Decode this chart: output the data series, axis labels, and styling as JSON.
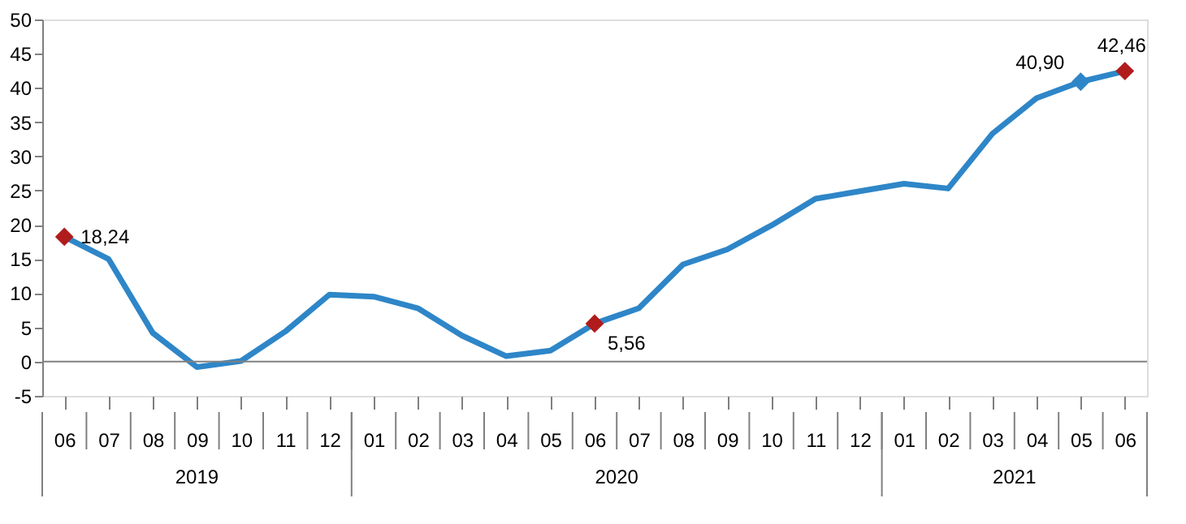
{
  "chart_data": {
    "type": "line",
    "categories": [
      "06",
      "07",
      "08",
      "09",
      "10",
      "11",
      "12",
      "01",
      "02",
      "03",
      "04",
      "05",
      "06",
      "07",
      "08",
      "09",
      "10",
      "11",
      "12",
      "01",
      "02",
      "03",
      "04",
      "05",
      "06"
    ],
    "series": [
      {
        "color": "#2e86c8",
        "values": [
          18.24,
          15.0,
          4.2,
          -0.8,
          0.1,
          4.4,
          9.8,
          9.5,
          7.8,
          3.8,
          0.8,
          1.6,
          5.56,
          7.8,
          14.2,
          16.4,
          19.9,
          23.8,
          24.9,
          26.0,
          25.3,
          33.3,
          38.5,
          40.9,
          42.46
        ],
        "value_labels": [
          "18,24",
          null,
          null,
          null,
          null,
          null,
          null,
          null,
          null,
          null,
          null,
          null,
          "5,56",
          null,
          null,
          null,
          null,
          null,
          null,
          null,
          null,
          null,
          null,
          "40,90",
          "42,46"
        ]
      },
      {
        "type": "scatter",
        "marker": "diamond",
        "color": "#b01c1c",
        "values": [
          18.24,
          null,
          null,
          null,
          null,
          null,
          null,
          null,
          null,
          null,
          null,
          null,
          5.56,
          null,
          null,
          null,
          null,
          null,
          null,
          null,
          null,
          null,
          null,
          null,
          42.46
        ]
      },
      {
        "type": "scatter",
        "marker": "diamond",
        "color": "#2e86c8",
        "values": [
          null,
          null,
          null,
          null,
          null,
          null,
          null,
          null,
          null,
          null,
          null,
          null,
          null,
          null,
          null,
          null,
          null,
          null,
          null,
          null,
          null,
          null,
          null,
          40.9,
          null
        ]
      }
    ],
    "annotations": [
      "2019",
      "2020",
      "2021"
    ],
    "ref_lines": [
      {
        "axis": "y",
        "value": 0,
        "color": "#808080"
      }
    ],
    "ylim": [
      -5,
      50
    ],
    "yticks": [
      -5,
      0,
      5,
      10,
      15,
      20,
      25,
      30,
      35,
      40,
      45,
      50
    ],
    "grid": false,
    "line_style": "solid"
  }
}
